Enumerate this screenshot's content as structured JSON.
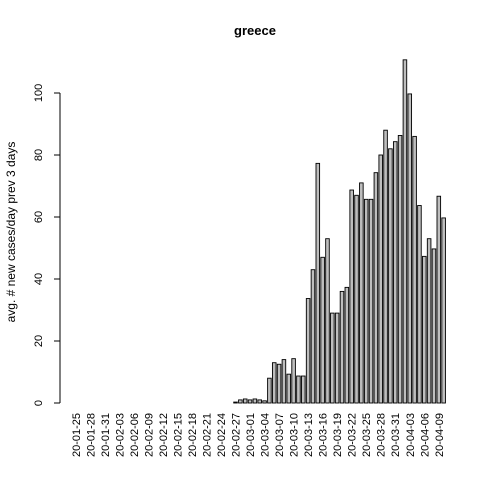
{
  "chart_data": {
    "type": "bar",
    "title": "greece",
    "xlabel": "",
    "ylabel": "avg. # new cases/day prev  3  days",
    "ylim": [
      0,
      112
    ],
    "yticks": [
      0,
      20,
      40,
      60,
      80,
      100
    ],
    "grid": false,
    "bar_color": "#bebebe",
    "x_tick_labels": [
      "20-01-25",
      "20-01-28",
      "20-01-31",
      "20-02-03",
      "20-02-06",
      "20-02-09",
      "20-02-12",
      "20-02-15",
      "20-02-18",
      "20-02-21",
      "20-02-24",
      "20-02-27",
      "20-03-01",
      "20-03-04",
      "20-03-07",
      "20-03-10",
      "20-03-13",
      "20-03-16",
      "20-03-19",
      "20-03-22",
      "20-03-25",
      "20-03-28",
      "20-03-31",
      "20-04-03",
      "20-04-06",
      "20-04-09"
    ],
    "categories": [
      "20-01-25",
      "20-01-26",
      "20-01-27",
      "20-01-28",
      "20-01-29",
      "20-01-30",
      "20-01-31",
      "20-02-01",
      "20-02-02",
      "20-02-03",
      "20-02-04",
      "20-02-05",
      "20-02-06",
      "20-02-07",
      "20-02-08",
      "20-02-09",
      "20-02-10",
      "20-02-11",
      "20-02-12",
      "20-02-13",
      "20-02-14",
      "20-02-15",
      "20-02-16",
      "20-02-17",
      "20-02-18",
      "20-02-19",
      "20-02-20",
      "20-02-21",
      "20-02-22",
      "20-02-23",
      "20-02-24",
      "20-02-25",
      "20-02-26",
      "20-02-27",
      "20-02-28",
      "20-02-29",
      "20-03-01",
      "20-03-02",
      "20-03-03",
      "20-03-04",
      "20-03-05",
      "20-03-06",
      "20-03-07",
      "20-03-08",
      "20-03-09",
      "20-03-10",
      "20-03-11",
      "20-03-12",
      "20-03-13",
      "20-03-14",
      "20-03-15",
      "20-03-16",
      "20-03-17",
      "20-03-18",
      "20-03-19",
      "20-03-20",
      "20-03-21",
      "20-03-22",
      "20-03-23",
      "20-03-24",
      "20-03-25",
      "20-03-26",
      "20-03-27",
      "20-03-28",
      "20-03-29",
      "20-03-30",
      "20-03-31",
      "20-04-01",
      "20-04-02",
      "20-04-03",
      "20-04-04",
      "20-04-05",
      "20-04-06",
      "20-04-07",
      "20-04-08",
      "20-04-09",
      "20-04-10"
    ],
    "values": [
      0,
      0,
      0,
      0,
      0,
      0,
      0,
      0,
      0,
      0,
      0,
      0,
      0,
      0,
      0,
      0,
      0,
      0,
      0,
      0,
      0,
      0,
      0,
      0,
      0,
      0,
      0,
      0,
      0,
      0,
      0,
      0,
      0,
      0.3,
      1,
      1.3,
      1,
      1.3,
      1,
      0.7,
      8,
      13,
      12.5,
      14,
      9.3,
      14.3,
      8.7,
      8.7,
      33.7,
      43,
      77.3,
      47,
      53,
      29,
      29,
      36,
      37.3,
      68.7,
      67,
      71,
      65.7,
      65.7,
      74.3,
      80,
      88,
      82,
      84.3,
      86.3,
      110.7,
      99.7,
      86,
      63.7,
      47.3,
      53,
      49.7,
      66.7,
      59.7
    ]
  }
}
